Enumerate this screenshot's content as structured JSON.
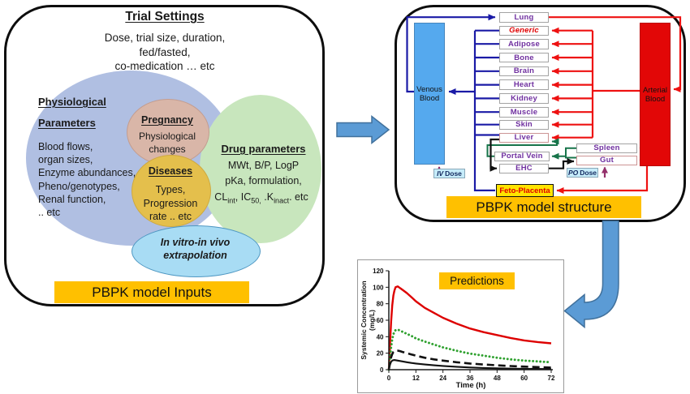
{
  "left_panel": {
    "title": "Trial Settings",
    "subtitle_lines": [
      "Dose, trial size, duration,",
      "fed/fasted,",
      "co-medication  … etc"
    ],
    "banner": "PBPK model Inputs",
    "physiological": {
      "heading_line1": "Physiological",
      "heading_line2": "Parameters",
      "items": [
        "Blood flows,",
        "organ sizes,",
        "Enzyme abundances,",
        "Pheno/genotypes,",
        "Renal function,",
        ".. etc"
      ]
    },
    "pregnancy": {
      "heading": "Pregnancy",
      "lines": [
        "Physiological",
        "changes"
      ]
    },
    "diseases": {
      "heading": "Diseases",
      "lines": [
        "Types,",
        "Progression",
        "rate .. etc"
      ]
    },
    "drug": {
      "heading": "Drug parameters",
      "line1": "MWt, B/P, LogP",
      "line2": "pKa, formulation,",
      "line3_rich": [
        {
          "t": "CL"
        },
        {
          "s": "int"
        },
        {
          "t": ", IC"
        },
        {
          "s": "50,"
        },
        {
          "t": " .K"
        },
        {
          "s": "inact"
        },
        {
          "t": ". etc"
        }
      ]
    },
    "ivive_lines": [
      "In vitro-in vivo",
      "extrapolation"
    ]
  },
  "right_panel": {
    "banner": "PBPK model structure",
    "venous_label_lines": [
      "Venous",
      "Blood"
    ],
    "arterial_label_lines": [
      "Arterial",
      "Blood"
    ],
    "organs": [
      {
        "label": "Lung"
      },
      {
        "label": "Generic",
        "style": "generic"
      },
      {
        "label": "Adipose"
      },
      {
        "label": "Bone"
      },
      {
        "label": "Brain"
      },
      {
        "label": "Heart"
      },
      {
        "label": "Kidney"
      },
      {
        "label": "Muscle"
      },
      {
        "label": "Skin"
      },
      {
        "label": "Liver",
        "border": "rose"
      },
      {
        "label": "Portal Vein"
      },
      {
        "label": "EHC"
      }
    ],
    "side_organs": [
      {
        "label": "Spleen"
      },
      {
        "label": "Gut",
        "border": "rose"
      }
    ],
    "feto_label": "Feto-Placenta",
    "iv_dose": {
      "prefix": "IV",
      "rest": "Dose"
    },
    "po_dose": {
      "prefix": "PO",
      "rest": "Dose"
    }
  },
  "chart_data": {
    "type": "line",
    "annotation": "Predictions",
    "x_label": "Time (h)",
    "y_label_lines": [
      "Systemic Concentration",
      "(mg/L)"
    ],
    "xlim": [
      0,
      72
    ],
    "ylim": [
      0,
      120
    ],
    "x_ticks": [
      0,
      12,
      24,
      36,
      48,
      60,
      72
    ],
    "y_ticks": [
      0,
      20,
      40,
      60,
      80,
      100,
      120
    ],
    "x": [
      0,
      0.5,
      1,
      1.5,
      2,
      2.5,
      3,
      4,
      5,
      6,
      8,
      10,
      12,
      16,
      20,
      24,
      30,
      36,
      42,
      48,
      54,
      60,
      66,
      72
    ],
    "series": [
      {
        "name": "red-solid",
        "color": "#dd0000",
        "style": "solid",
        "values": [
          0,
          30,
          58,
          78,
          90,
          96,
          100,
          101,
          99,
          97,
          93,
          88,
          83,
          75,
          69,
          63,
          56,
          50,
          45.5,
          42,
          38.5,
          35.5,
          33.5,
          32
        ]
      },
      {
        "name": "green-dotted",
        "color": "#2fa12f",
        "style": "dotted",
        "values": [
          0,
          14,
          27,
          37,
          43,
          46,
          48,
          48.5,
          47.5,
          46,
          43.5,
          41,
          38,
          34,
          30.5,
          27,
          23,
          19.5,
          17,
          14.5,
          12.5,
          11,
          10,
          9
        ]
      },
      {
        "name": "black-dashed",
        "color": "#111111",
        "style": "dashed",
        "values": [
          0,
          9,
          15,
          19,
          21.5,
          22.5,
          23,
          23,
          22.5,
          21.5,
          20,
          18.5,
          17,
          14.5,
          12.5,
          11,
          9,
          7.5,
          6.3,
          5.3,
          4.4,
          3.7,
          3.1,
          2.6
        ]
      },
      {
        "name": "black-solid",
        "color": "#111111",
        "style": "solid",
        "values": [
          0,
          6,
          9.5,
          11,
          11.5,
          11.7,
          11.5,
          11,
          10.5,
          10,
          9,
          8.2,
          7.5,
          6.3,
          5.3,
          4.5,
          3.5,
          2.7,
          2.1,
          1.7,
          1.3,
          1.1,
          0.9,
          0.7
        ]
      }
    ]
  },
  "colors": {
    "banner_orange": "#FFC000",
    "venous_blue": "#55a9ee",
    "arterial_red": "#e20707",
    "organ_text_purple": "#7030A0",
    "flow_blue": "#1a1aa6",
    "flow_red": "#ee1111",
    "flow_green": "#17744a",
    "flow_maroon": "#94306b",
    "big_arrow_blue": "#5B9BD5"
  }
}
